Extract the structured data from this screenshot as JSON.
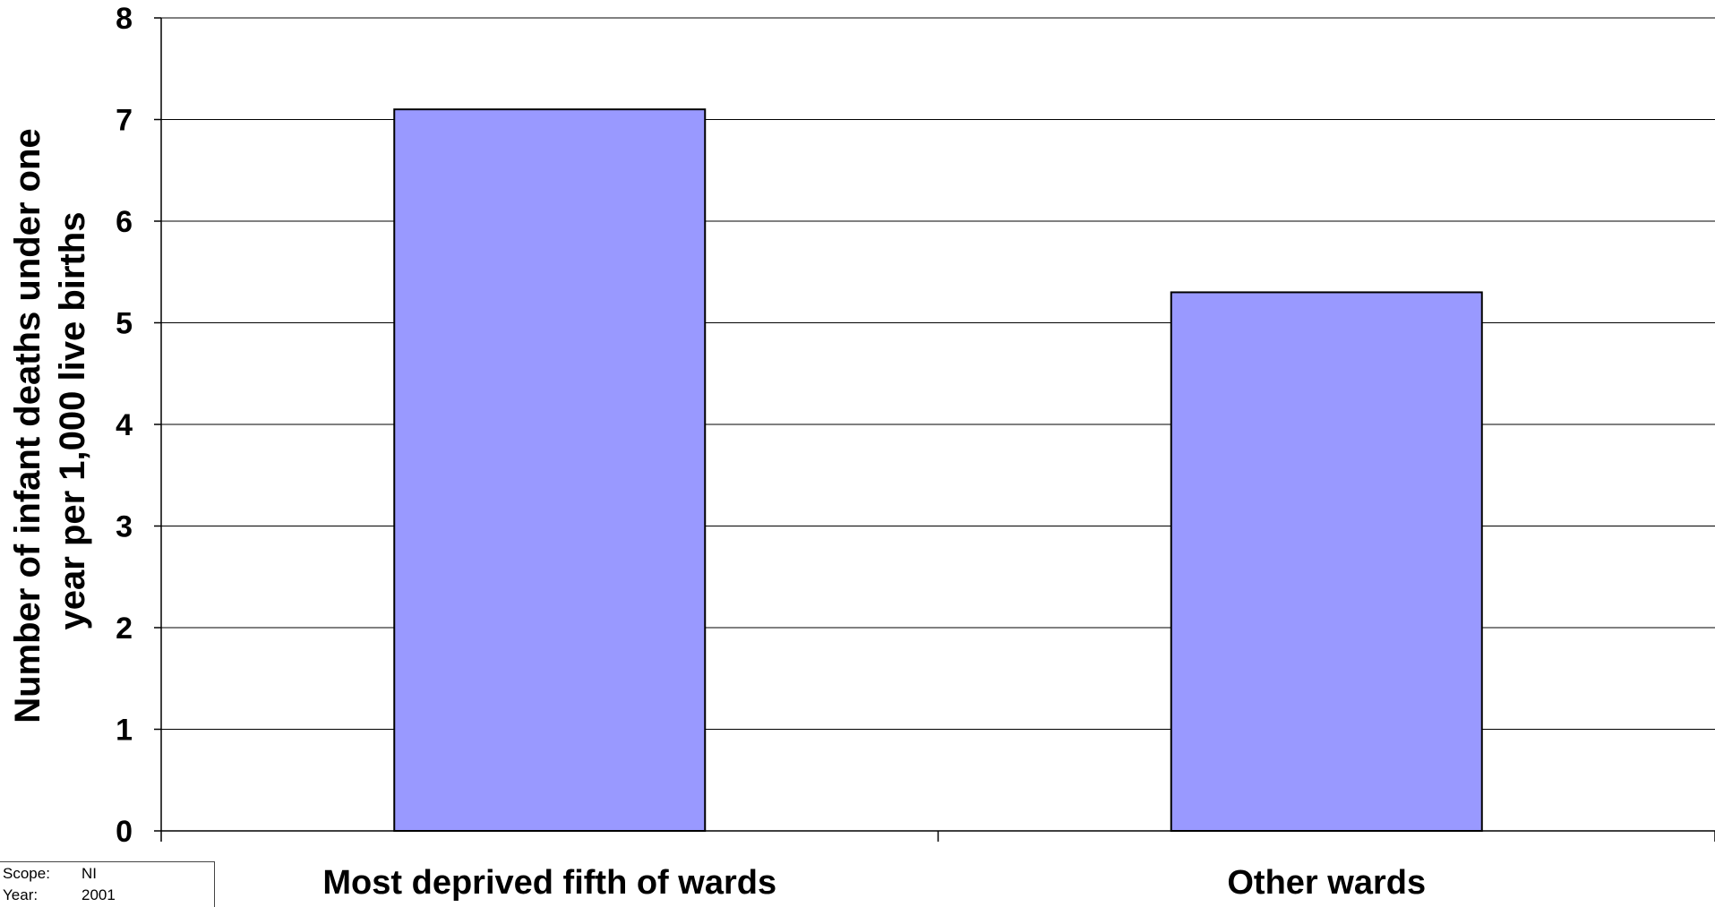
{
  "chart_data": {
    "type": "bar",
    "title": "",
    "categories": [
      "Most deprived fifth of wards",
      "Other wards"
    ],
    "values": [
      7.1,
      5.3
    ],
    "ylabel": "Number of infant deaths under one year per 1,000 live births",
    "ylabel_lines": [
      "Number of infant deaths under one",
      "year per 1,000 live births"
    ],
    "xlabel": "",
    "ylim": [
      0,
      8
    ],
    "yticks": [
      0,
      1,
      2,
      3,
      4,
      5,
      6,
      7,
      8
    ],
    "grid": true,
    "bar_color": "#9999ff",
    "legend": "none"
  },
  "info": {
    "scope_label": "Scope:",
    "scope_value": "NI",
    "year_label": "Year:",
    "year_value": "2001"
  }
}
